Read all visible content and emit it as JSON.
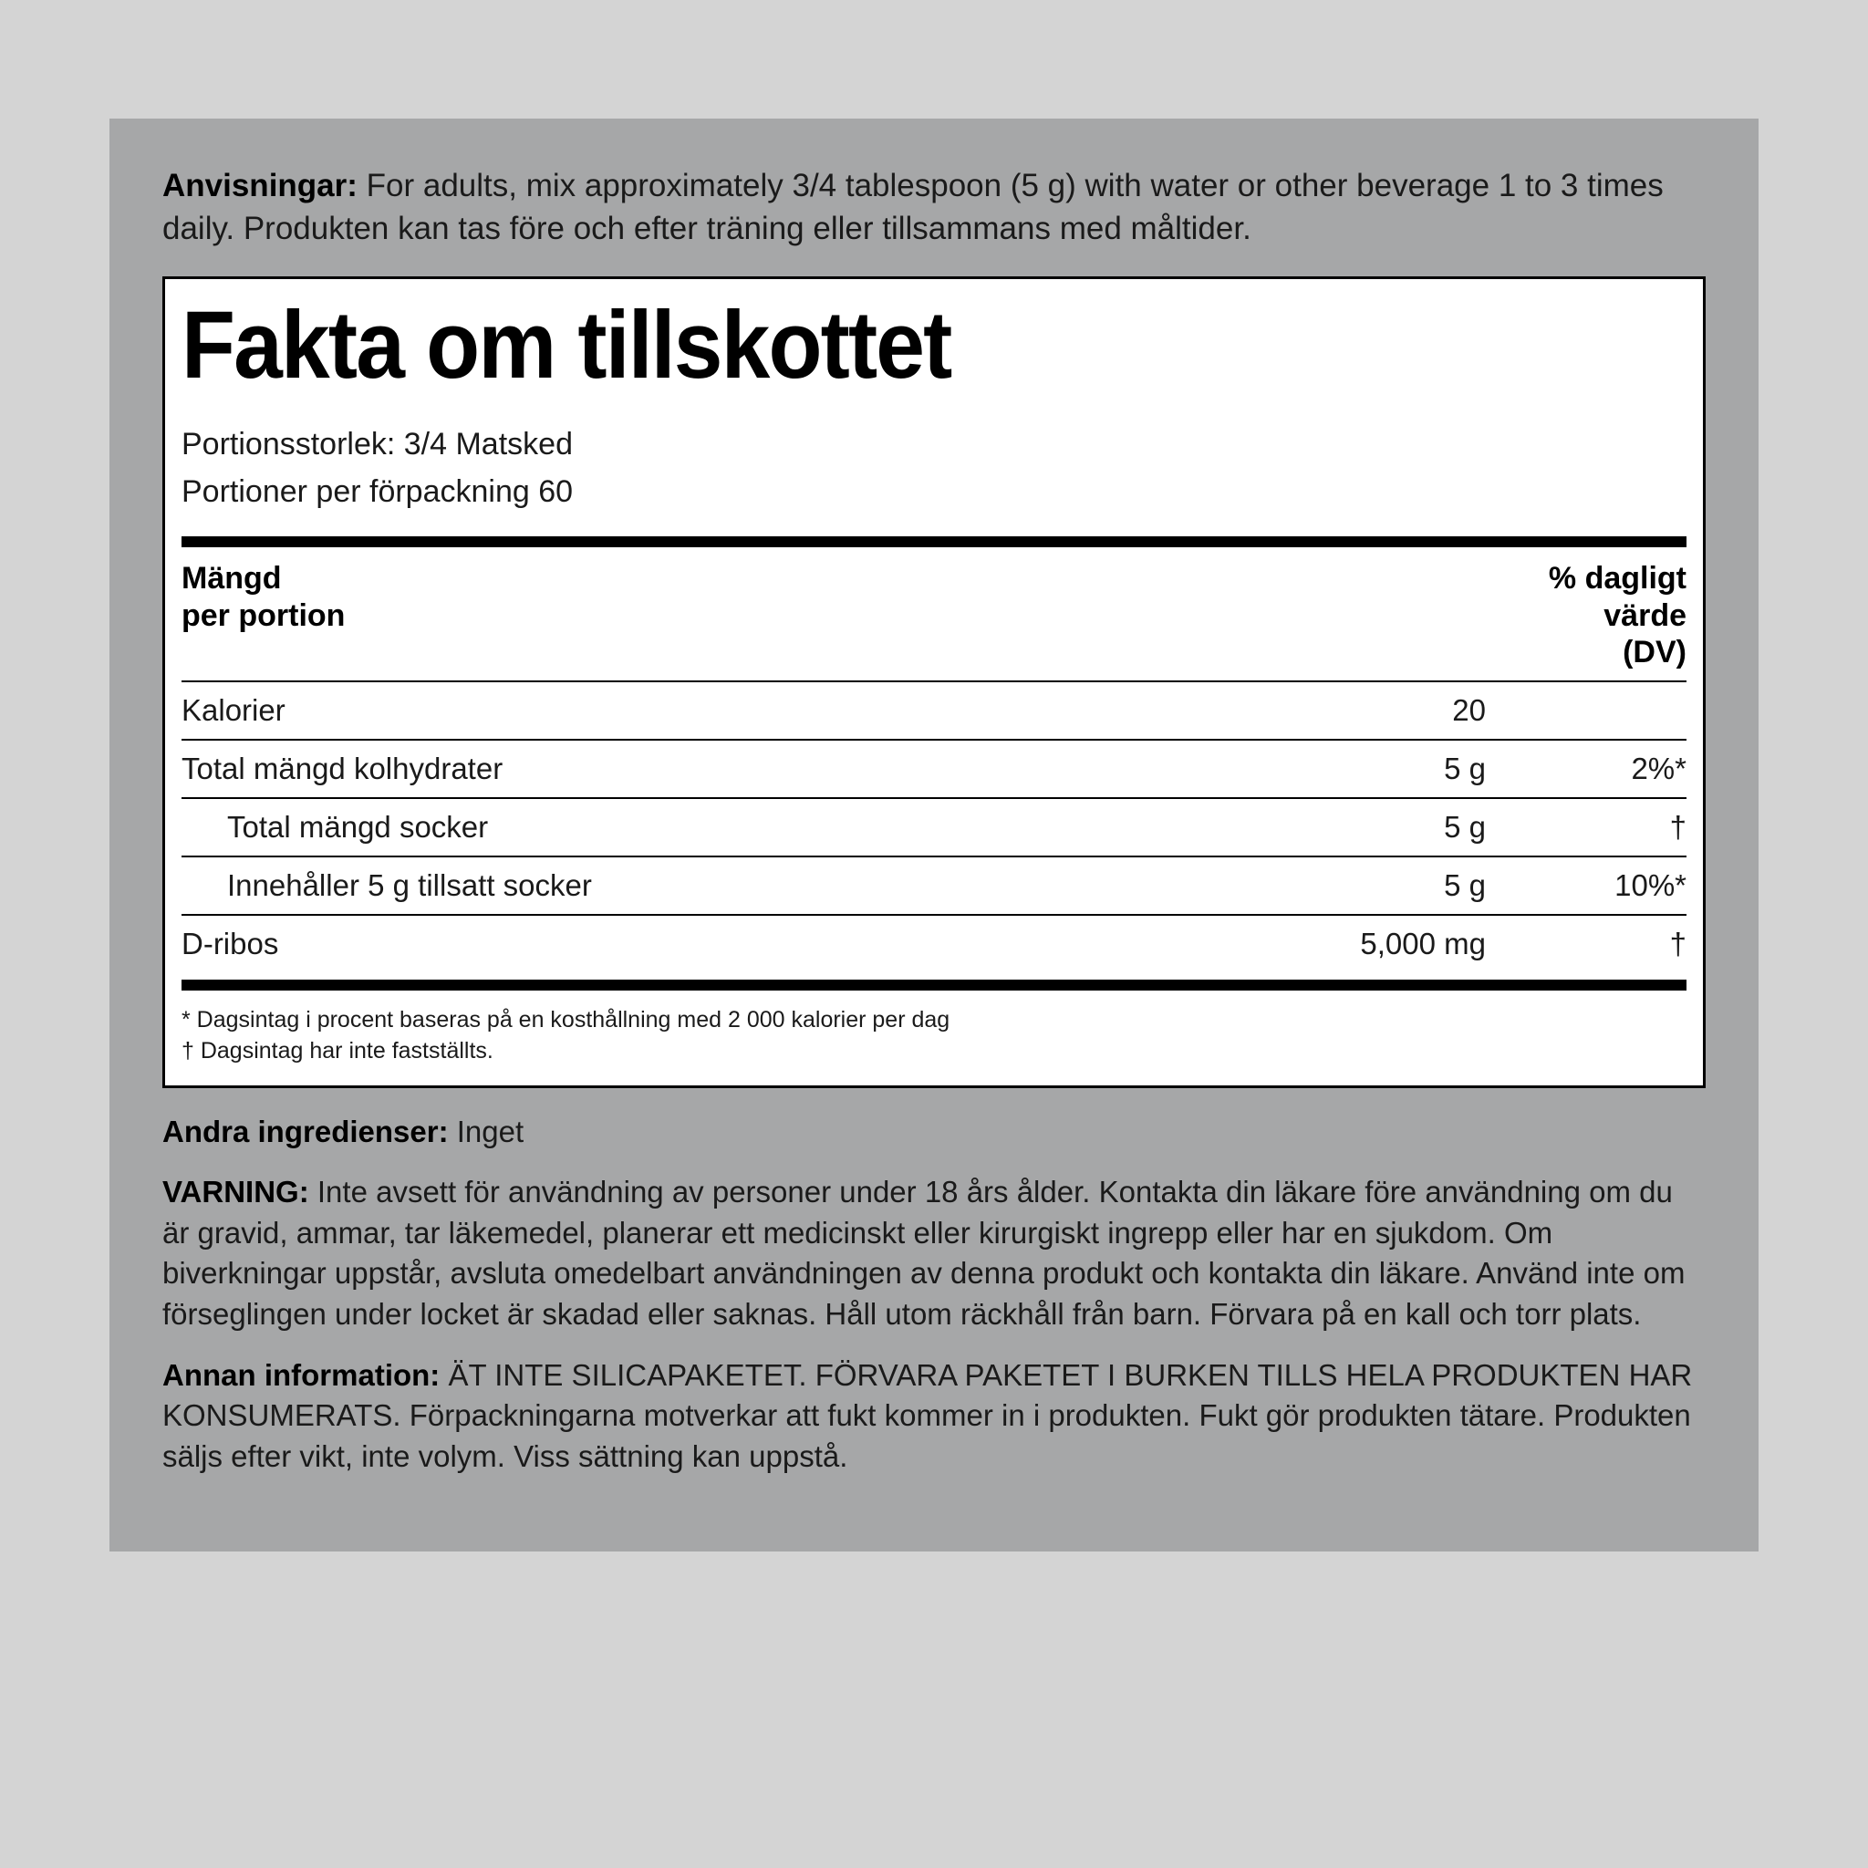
{
  "directions": {
    "label": "Anvisningar:",
    "text": " For adults, mix approximately 3/4 tablespoon (5 g) with water or other beverage 1 to 3 times daily. Produkten kan tas före och efter träning eller tillsammans med måltider."
  },
  "facts": {
    "title": "Fakta om tillskottet",
    "serving_size_label": "Portionsstorlek: ",
    "serving_size_value": "3/4 Matsked",
    "servings_per_label": "Portioner per förpackning ",
    "servings_per_value": "60",
    "header_left_line1": "Mängd",
    "header_left_line2": "per portion",
    "header_right_line1": "% dagligt",
    "header_right_line2": "värde",
    "header_right_line3": "(DV)",
    "rows": [
      {
        "name": "Kalorier",
        "amount": "20",
        "dv": "",
        "indent": 0
      },
      {
        "name": "Total mängd kolhydrater",
        "amount": "5 g",
        "dv": "2%*",
        "indent": 0
      },
      {
        "name": "Total mängd socker",
        "amount": "5 g",
        "dv": "†",
        "indent": 1
      },
      {
        "name": "Innehåller 5 g tillsatt socker",
        "amount": "5 g",
        "dv": "10%*",
        "indent": 1
      },
      {
        "name": "D-ribos",
        "amount": "5,000 mg",
        "dv": "†",
        "indent": 0
      }
    ],
    "footnote1": "* Dagsintag i procent baseras på en kosthållning med 2 000 kalorier per dag",
    "footnote2": "† Dagsintag har inte fastställts."
  },
  "other_ingredients": {
    "label": "Andra ingredienser:",
    "text": " Inget"
  },
  "warning": {
    "label": "VARNING:",
    "text": " Inte avsett för användning av personer under 18 års ålder. Kontakta din läkare före användning om du är gravid, ammar, tar läkemedel, planerar ett medicinskt eller kirurgiskt ingrepp eller har en sjukdom. Om biverkningar uppstår, avsluta omedelbart användningen av denna produkt och kontakta din läkare. Använd inte om förseglingen under locket är skadad eller saknas. Håll utom räckhåll från barn. Förvara på en kall och torr plats."
  },
  "other_info": {
    "label": "Annan information:",
    "text": " ÄT INTE SILICAPAKETET. FÖRVARA PAKETET I BURKEN TILLS HELA PRODUKTEN HAR KONSUMERATS. Förpackningarna motverkar att fukt kommer in i produkten. Fukt gör produkten tätare. Produkten säljs efter vikt, inte volym. Viss sättning kan uppstå."
  },
  "colors": {
    "page_bg": "#d4d4d4",
    "panel_bg": "#a6a7a8",
    "box_bg": "#ffffff",
    "rule": "#000000",
    "text": "#1a1a1a"
  }
}
